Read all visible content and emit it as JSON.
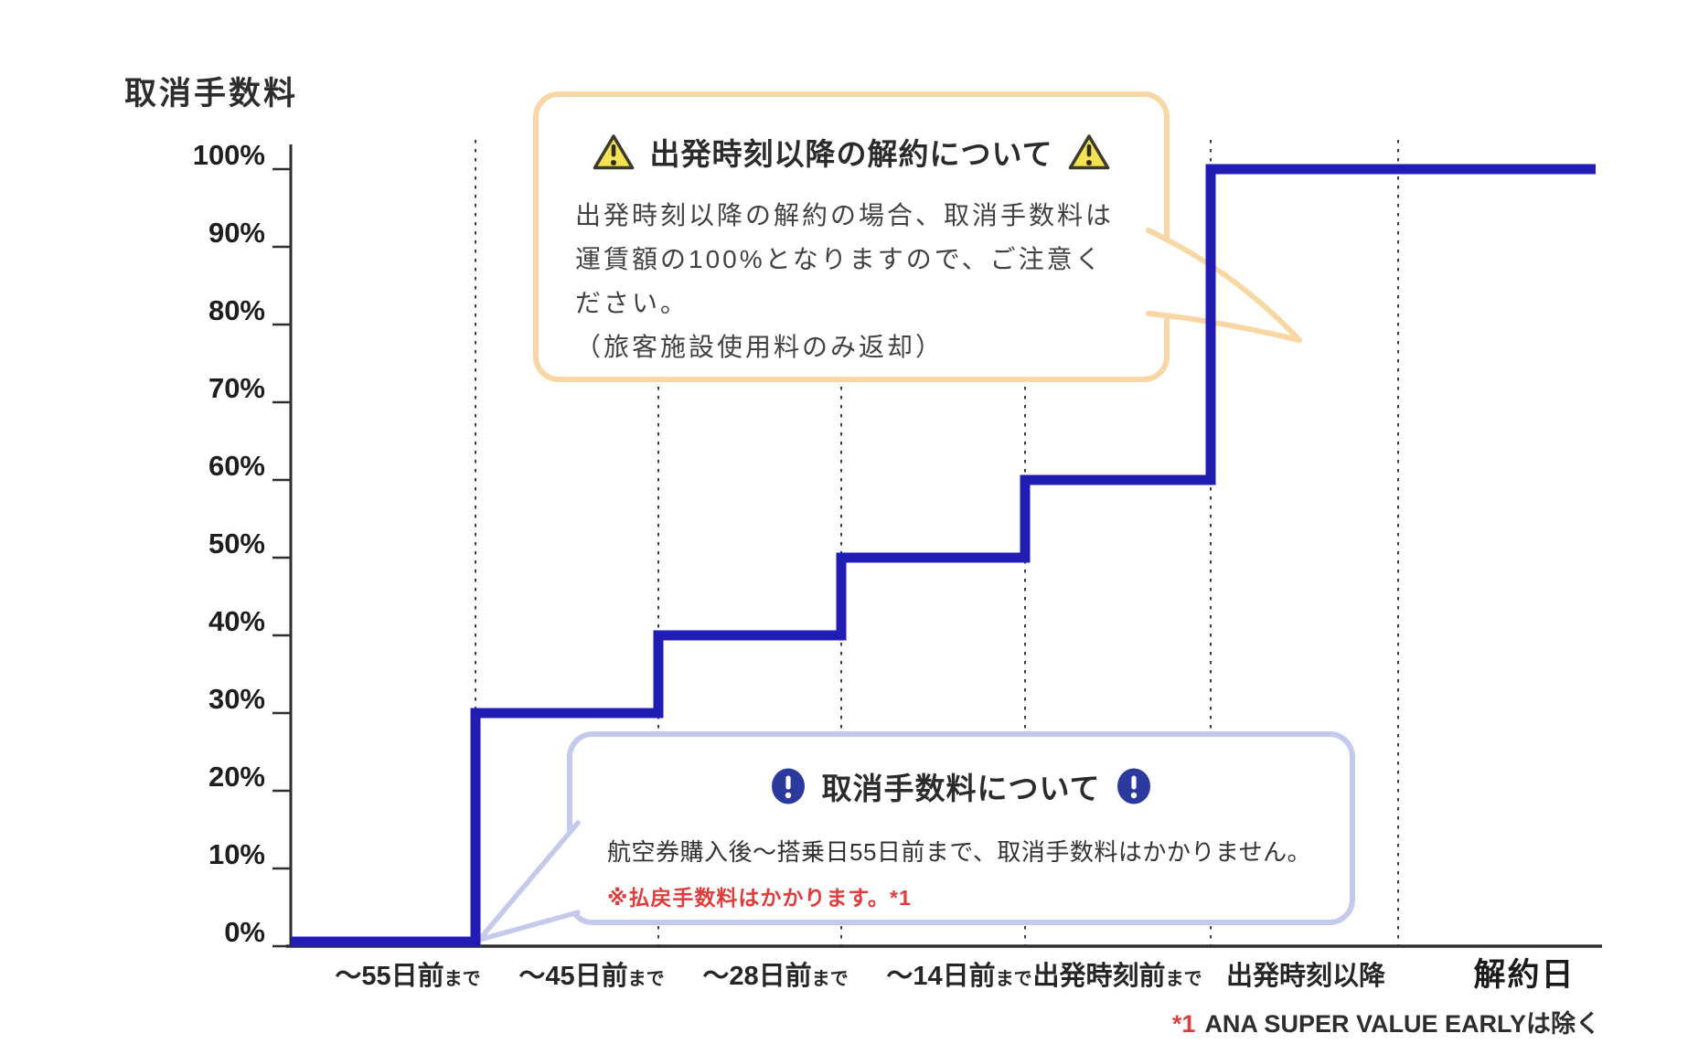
{
  "chart_data": {
    "type": "step-line",
    "title": "取消手数料",
    "ylabel": "取消手数料",
    "xlabel_end": "解約日",
    "ylim": [
      0,
      100
    ],
    "y_ticks": [
      "100%",
      "90%",
      "80%",
      "70%",
      "60%",
      "50%",
      "40%",
      "30%",
      "20%",
      "10%",
      "0%"
    ],
    "categories": [
      {
        "main": "～55日前",
        "suffix": "まで"
      },
      {
        "main": "～45日前",
        "suffix": "まで"
      },
      {
        "main": "～28日前",
        "suffix": "まで"
      },
      {
        "main": "～14日前",
        "suffix": "まで"
      },
      {
        "main": "出発時刻前",
        "suffix": "まで"
      },
      {
        "main": "出発時刻以降",
        "suffix": ""
      }
    ],
    "values": [
      0,
      30,
      40,
      50,
      60,
      100
    ],
    "unit": "%",
    "line_color": "#211cb4",
    "grid": "vertical-dashed",
    "legend": "none"
  },
  "callouts": {
    "departure": {
      "icon": "warning-triangle",
      "title": "出発時刻以降の解約について",
      "body_lines": [
        "出発時刻以降の解約の場合、取消手数料は",
        "運賃額の100%となりますので、ご注意ください。",
        "（旅客施設使用料のみ返却）"
      ],
      "border_color": "#f8d7a5"
    },
    "fee": {
      "icon": "exclamation-circle",
      "title": "取消手数料について",
      "body": "航空券購入後～搭乗日55日前まで、取消手数料はかかりません。",
      "note": "※払戻手数料はかかります。*1",
      "note_color": "#e13c3c",
      "border_color": "#c5caed"
    }
  },
  "footnote": {
    "marker": "*1",
    "text": "ANA SUPER VALUE EARLYは除く",
    "marker_color": "#d94141"
  },
  "colors": {
    "step_line": "#211cb4",
    "axis": "#2e2e2e",
    "warning_triangle_fill": "#f6e153",
    "exclamation_circle_fill": "#2d3a9d"
  }
}
